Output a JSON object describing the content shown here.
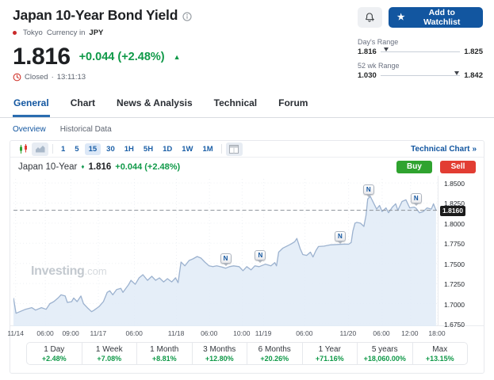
{
  "palette": {
    "green": "#0f9948",
    "red": "#e23d33",
    "brand_blue": "#1256a0",
    "buy_green": "#2fa32f",
    "sell_red": "#e23d33",
    "line": "#9cb2cf",
    "fill": "#e1ebf7"
  },
  "header": {
    "title": "Japan 10-Year Bond Yield",
    "market": "Tokyo",
    "currency_label": "Currency in",
    "currency": "JPY",
    "price": "1.816",
    "change": "+0.044 (+2.48%)",
    "up_arrow": "▲",
    "status": "Closed",
    "status_separator": "·",
    "status_time": "13:11:13",
    "watchlist_label": "Add to Watchlist",
    "star_icon": "★",
    "days_range": {
      "label": "Day's Range",
      "low": "1.816",
      "high": "1.825",
      "pos": 0.07
    },
    "wk52_range": {
      "label": "52 wk Range",
      "low": "1.030",
      "high": "1.842",
      "pos": 0.96
    }
  },
  "tabs": {
    "active_index": 0,
    "items": [
      "General",
      "Chart",
      "News & Analysis",
      "Technical",
      "Forum"
    ]
  },
  "subtabs": {
    "active_index": 0,
    "items": [
      "Overview",
      "Historical Data"
    ]
  },
  "toolbar": {
    "chart_type_icons": [
      "candlestick-chart-icon",
      "area-chart-icon"
    ],
    "selected_chart_type": "area",
    "intervals": [
      "1",
      "5",
      "15",
      "30",
      "1H",
      "5H",
      "1D",
      "1W",
      "1M"
    ],
    "selected_interval": "15",
    "technical_chart_label": "Technical Chart",
    "chevron": "»"
  },
  "chart_header": {
    "symbol": "Japan 10-Year",
    "price": "1.816",
    "change": "+0.044 (+2.48%)",
    "buy_label": "Buy",
    "sell_label": "Sell"
  },
  "watermark": {
    "name": "Investing",
    "suffix": ".com"
  },
  "chart_data": {
    "type": "area",
    "title": "Japan 10-Year",
    "ylim": [
      1.672,
      1.855
    ],
    "grid": true,
    "current_price": {
      "label": "1.8160",
      "value": 1.816
    },
    "y_ticks": [
      {
        "label": "1.8500",
        "value": 1.85
      },
      {
        "label": "1.8250",
        "value": 1.825
      },
      {
        "label": "1.8000",
        "value": 1.8
      },
      {
        "label": "1.7750",
        "value": 1.775
      },
      {
        "label": "1.7500",
        "value": 1.75
      },
      {
        "label": "1.7250",
        "value": 1.725
      },
      {
        "label": "1.7000",
        "value": 1.7
      },
      {
        "label": "1.6750",
        "value": 1.675
      }
    ],
    "x_ticks": [
      {
        "label": "11/14",
        "pos": 0.005
      },
      {
        "label": "06:00",
        "pos": 0.075
      },
      {
        "label": "09:00",
        "pos": 0.135
      },
      {
        "label": "11/17",
        "pos": 0.2
      },
      {
        "label": "06:00",
        "pos": 0.285
      },
      {
        "label": "11/18",
        "pos": 0.384
      },
      {
        "label": "06:00",
        "pos": 0.462
      },
      {
        "label": "10:00",
        "pos": 0.539
      },
      {
        "label": "11/19",
        "pos": 0.59
      },
      {
        "label": "06:00",
        "pos": 0.687
      },
      {
        "label": "11/20",
        "pos": 0.79
      },
      {
        "label": "06:00",
        "pos": 0.869
      },
      {
        "label": "12:00",
        "pos": 0.936
      },
      {
        "label": "18:00",
        "pos": 1.0
      }
    ],
    "points": [
      [
        0.0,
        1.707
      ],
      [
        0.006,
        1.688
      ],
      [
        0.015,
        1.69
      ],
      [
        0.028,
        1.693
      ],
      [
        0.043,
        1.695
      ],
      [
        0.052,
        1.692
      ],
      [
        0.066,
        1.695
      ],
      [
        0.077,
        1.693
      ],
      [
        0.086,
        1.7
      ],
      [
        0.095,
        1.7025
      ],
      [
        0.105,
        1.707
      ],
      [
        0.112,
        1.711
      ],
      [
        0.122,
        1.7095
      ],
      [
        0.127,
        1.7015
      ],
      [
        0.137,
        1.7025
      ],
      [
        0.142,
        1.707
      ],
      [
        0.15,
        1.7025
      ],
      [
        0.159,
        1.7095
      ],
      [
        0.165,
        1.7
      ],
      [
        0.174,
        1.695
      ],
      [
        0.184,
        1.69
      ],
      [
        0.189,
        1.6915
      ],
      [
        0.202,
        1.6965
      ],
      [
        0.212,
        1.7025
      ],
      [
        0.221,
        1.714
      ],
      [
        0.227,
        1.716
      ],
      [
        0.234,
        1.711
      ],
      [
        0.243,
        1.7175
      ],
      [
        0.253,
        1.719
      ],
      [
        0.258,
        1.714
      ],
      [
        0.272,
        1.724
      ],
      [
        0.277,
        1.729
      ],
      [
        0.287,
        1.724
      ],
      [
        0.296,
        1.732
      ],
      [
        0.305,
        1.736
      ],
      [
        0.316,
        1.729
      ],
      [
        0.326,
        1.734
      ],
      [
        0.335,
        1.729
      ],
      [
        0.344,
        1.732
      ],
      [
        0.354,
        1.727
      ],
      [
        0.363,
        1.731
      ],
      [
        0.373,
        1.727
      ],
      [
        0.382,
        1.732
      ],
      [
        0.388,
        1.726
      ],
      [
        0.395,
        1.7517
      ],
      [
        0.404,
        1.747
      ],
      [
        0.414,
        1.7537
      ],
      [
        0.423,
        1.7556
      ],
      [
        0.433,
        1.7586
      ],
      [
        0.442,
        1.7566
      ],
      [
        0.451,
        1.7517
      ],
      [
        0.461,
        1.747
      ],
      [
        0.47,
        1.746
      ],
      [
        0.479,
        1.747
      ],
      [
        0.491,
        1.7455
      ],
      [
        0.5,
        1.744
      ],
      [
        0.509,
        1.746
      ],
      [
        0.519,
        1.747
      ],
      [
        0.532,
        1.746
      ],
      [
        0.541,
        1.741
      ],
      [
        0.55,
        1.746
      ],
      [
        0.56,
        1.742
      ],
      [
        0.569,
        1.747
      ],
      [
        0.579,
        1.746
      ],
      [
        0.594,
        1.749
      ],
      [
        0.607,
        1.747
      ],
      [
        0.616,
        1.751
      ],
      [
        0.62,
        1.747
      ],
      [
        0.625,
        1.764
      ],
      [
        0.635,
        1.769
      ],
      [
        0.654,
        1.774
      ],
      [
        0.663,
        1.777
      ],
      [
        0.668,
        1.781
      ],
      [
        0.676,
        1.768
      ],
      [
        0.682,
        1.761
      ],
      [
        0.691,
        1.76
      ],
      [
        0.7,
        1.764
      ],
      [
        0.706,
        1.758
      ],
      [
        0.713,
        1.766
      ],
      [
        0.719,
        1.771
      ],
      [
        0.732,
        1.7715
      ],
      [
        0.747,
        1.773
      ],
      [
        0.764,
        1.7735
      ],
      [
        0.781,
        1.774
      ],
      [
        0.79,
        1.7738
      ],
      [
        0.796,
        1.776
      ],
      [
        0.8,
        1.79
      ],
      [
        0.805,
        1.8
      ],
      [
        0.809,
        1.801
      ],
      [
        0.818,
        1.8
      ],
      [
        0.826,
        1.796
      ],
      [
        0.831,
        1.81
      ],
      [
        0.835,
        1.83
      ],
      [
        0.841,
        1.8335
      ],
      [
        0.846,
        1.828
      ],
      [
        0.856,
        1.8175
      ],
      [
        0.863,
        1.822
      ],
      [
        0.869,
        1.8145
      ],
      [
        0.878,
        1.819
      ],
      [
        0.884,
        1.813
      ],
      [
        0.893,
        1.82
      ],
      [
        0.901,
        1.824
      ],
      [
        0.906,
        1.816
      ],
      [
        0.916,
        1.827
      ],
      [
        0.925,
        1.829
      ],
      [
        0.934,
        1.819
      ],
      [
        0.944,
        1.82
      ],
      [
        0.949,
        1.8185
      ],
      [
        0.957,
        1.813
      ],
      [
        0.966,
        1.8145
      ],
      [
        0.975,
        1.819
      ],
      [
        0.985,
        1.8175
      ],
      [
        0.99,
        1.824
      ],
      [
        0.996,
        1.816
      ]
    ],
    "news_markers": [
      {
        "x": 0.5,
        "y": 1.7565
      },
      {
        "x": 0.582,
        "y": 1.7605
      },
      {
        "x": 0.77,
        "y": 1.7832
      },
      {
        "x": 0.837,
        "y": 1.8421
      },
      {
        "x": 0.949,
        "y": 1.8313
      }
    ]
  },
  "performance": [
    {
      "label": "1 Day",
      "value": "+2.48%"
    },
    {
      "label": "1 Week",
      "value": "+7.08%"
    },
    {
      "label": "1 Month",
      "value": "+8.81%"
    },
    {
      "label": "3 Months",
      "value": "+12.80%"
    },
    {
      "label": "6 Months",
      "value": "+20.26%"
    },
    {
      "label": "1 Year",
      "value": "+71.16%"
    },
    {
      "label": "5 years",
      "value": "+18,060.00%"
    },
    {
      "label": "Max",
      "value": "+13.15%"
    }
  ]
}
